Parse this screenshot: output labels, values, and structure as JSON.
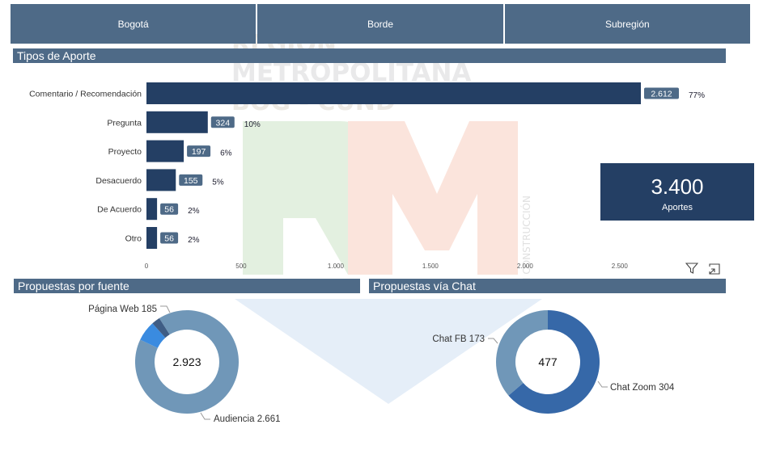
{
  "tabs": [
    "Bogotá",
    "Borde",
    "Subregión"
  ],
  "bar_section_title": "Tipos de Aporte",
  "fuente_title": "Propuestas por fuente",
  "chat_title": "Propuestas vía Chat",
  "watermark_text": [
    "REGIÓN",
    "METROPOLITANA",
    "BOG - CUND",
    "RM",
    "EN CONSTRUCCIÓN"
  ],
  "kpi": {
    "value": "3.400",
    "label": "Aportes"
  },
  "icons": {
    "filter": "filter-icon",
    "expand": "focus-mode-icon"
  },
  "colors": {
    "header": "#4e6a87",
    "bar": "#243f64",
    "kpi": "#243f64"
  },
  "chart_data": [
    {
      "type": "bar",
      "orientation": "horizontal",
      "categories": [
        "Comentario / Recomendación",
        "Pregunta",
        "Proyecto",
        "Desacuerdo",
        "De Acuerdo",
        "Otro"
      ],
      "values": [
        2612,
        324,
        197,
        155,
        56,
        56
      ],
      "value_labels": [
        "2.612",
        "324",
        "197",
        "155",
        "56",
        "56"
      ],
      "percent_labels": [
        "77%",
        "10%",
        "6%",
        "5%",
        "2%",
        "2%"
      ],
      "xlim": [
        0,
        2612
      ],
      "xticks": [
        0,
        500,
        1000,
        1500,
        2000,
        2500
      ],
      "xtick_labels": [
        "0",
        "500",
        "1.000",
        "1.500",
        "2.000",
        "2.500"
      ],
      "title": "Tipos de Aporte"
    },
    {
      "type": "pie",
      "donut": true,
      "title": "Propuestas por fuente",
      "total_label": "2.923",
      "slices": [
        {
          "name": "Audiencia",
          "value": 2661,
          "label": "Audiencia 2.661",
          "color": "#7097b8"
        },
        {
          "name": "Página Web",
          "value": 185,
          "label": "Página Web 185",
          "color": "#3a8be0"
        },
        {
          "name": "",
          "value": 77,
          "label": "",
          "color": "#3f5d85"
        }
      ]
    },
    {
      "type": "pie",
      "donut": true,
      "title": "Propuestas vía Chat",
      "total_label": "477",
      "slices": [
        {
          "name": "Chat Zoom",
          "value": 304,
          "label": "Chat Zoom 304",
          "color": "#3668a8"
        },
        {
          "name": "Chat FB",
          "value": 173,
          "label": "Chat FB 173",
          "color": "#7097b8"
        }
      ]
    }
  ]
}
